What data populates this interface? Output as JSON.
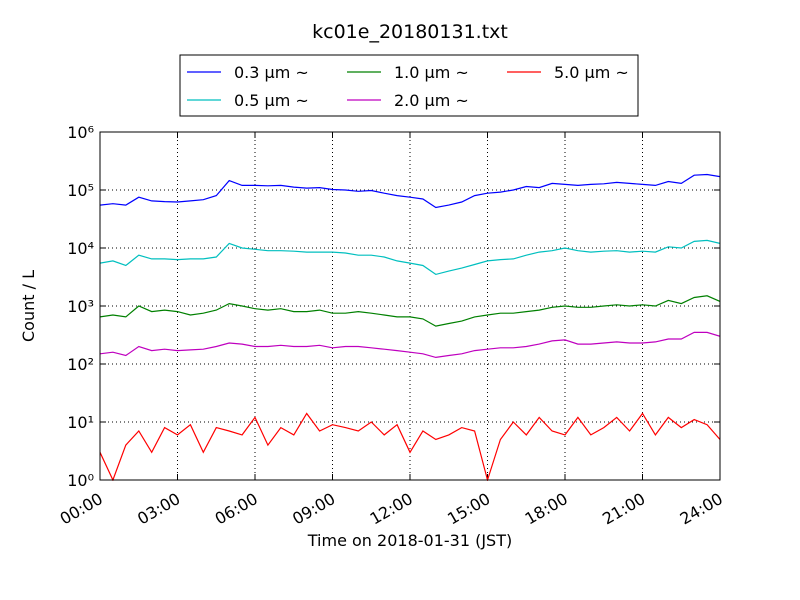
{
  "chart_data": {
    "type": "line",
    "title": "kc01e_20180131.txt",
    "xlabel": "Time on 2018-01-31 (JST)",
    "ylabel": "Count / L",
    "yscale": "log",
    "grid": true,
    "legend": "upper center",
    "x": [
      0,
      0.5,
      1,
      1.5,
      2,
      2.5,
      3,
      3.5,
      4,
      4.5,
      5,
      5.5,
      6,
      6.5,
      7,
      7.5,
      8,
      8.5,
      9,
      9.5,
      10,
      10.5,
      11,
      11.5,
      12,
      12.5,
      13,
      13.5,
      14,
      14.5,
      15,
      15.5,
      16,
      16.5,
      17,
      17.5,
      18,
      18.5,
      19,
      19.5,
      20,
      20.5,
      21,
      21.5,
      22,
      22.5,
      23,
      23.5,
      24
    ],
    "xlim": [
      0,
      24
    ],
    "xticks": [
      {
        "value": 0,
        "label": "00:00"
      },
      {
        "value": 3,
        "label": "03:00"
      },
      {
        "value": 6,
        "label": "06:00"
      },
      {
        "value": 9,
        "label": "09:00"
      },
      {
        "value": 12,
        "label": "12:00"
      },
      {
        "value": 15,
        "label": "15:00"
      },
      {
        "value": 18,
        "label": "18:00"
      },
      {
        "value": 21,
        "label": "21:00"
      },
      {
        "value": 24,
        "label": "24:00"
      }
    ],
    "ylim": [
      1,
      1000000
    ],
    "yticks": [
      {
        "value": 1,
        "label": "10⁰"
      },
      {
        "value": 10,
        "label": "10¹"
      },
      {
        "value": 100,
        "label": "10²"
      },
      {
        "value": 1000,
        "label": "10³"
      },
      {
        "value": 10000,
        "label": "10⁴"
      },
      {
        "value": 100000,
        "label": "10⁵"
      },
      {
        "value": 1000000,
        "label": "10⁶"
      }
    ],
    "series": [
      {
        "name": "0.3 μm ~",
        "color": "#0000ff",
        "values": [
          55000,
          58000,
          55000,
          75000,
          65000,
          63000,
          62000,
          65000,
          68000,
          80000,
          145000,
          120000,
          120000,
          118000,
          120000,
          112000,
          108000,
          110000,
          102000,
          100000,
          95000,
          98000,
          88000,
          80000,
          75000,
          70000,
          50000,
          55000,
          62000,
          80000,
          88000,
          92000,
          100000,
          115000,
          110000,
          130000,
          125000,
          120000,
          125000,
          128000,
          135000,
          130000,
          125000,
          120000,
          140000,
          130000,
          180000,
          185000,
          170000
        ]
      },
      {
        "name": "0.5 μm ~",
        "color": "#00bfbf",
        "values": [
          5500,
          6000,
          5000,
          7500,
          6500,
          6500,
          6300,
          6500,
          6500,
          7000,
          12000,
          10000,
          9500,
          9000,
          9000,
          8800,
          8500,
          8500,
          8500,
          8200,
          7500,
          7500,
          7000,
          6000,
          5500,
          5000,
          3500,
          4000,
          4500,
          5200,
          6000,
          6300,
          6500,
          7500,
          8500,
          9000,
          10000,
          9000,
          8500,
          8800,
          9000,
          8500,
          8800,
          8500,
          10500,
          10000,
          13000,
          13500,
          12000
        ]
      },
      {
        "name": "1.0 μm ~",
        "color": "#008000",
        "values": [
          650,
          700,
          650,
          1000,
          800,
          850,
          800,
          700,
          750,
          850,
          1100,
          1000,
          900,
          850,
          900,
          800,
          800,
          850,
          750,
          750,
          800,
          750,
          700,
          650,
          650,
          600,
          450,
          500,
          550,
          650,
          700,
          750,
          750,
          800,
          850,
          950,
          1000,
          950,
          950,
          1000,
          1050,
          1000,
          1050,
          1000,
          1250,
          1100,
          1400,
          1500,
          1200
        ]
      },
      {
        "name": "2.0 μm ~",
        "color": "#bf00bf",
        "values": [
          150,
          160,
          140,
          200,
          170,
          180,
          170,
          175,
          180,
          200,
          230,
          220,
          200,
          200,
          210,
          200,
          200,
          210,
          190,
          200,
          200,
          190,
          180,
          170,
          160,
          150,
          130,
          140,
          150,
          170,
          180,
          190,
          190,
          200,
          220,
          250,
          260,
          220,
          220,
          230,
          240,
          230,
          230,
          240,
          270,
          270,
          350,
          350,
          300
        ]
      },
      {
        "name": "5.0 μm ~",
        "color": "#ff0000",
        "values": [
          3,
          1,
          4,
          7,
          3,
          8,
          6,
          9,
          3,
          8,
          7,
          6,
          12,
          4,
          8,
          6,
          14,
          7,
          9,
          8,
          7,
          10,
          6,
          9,
          3,
          7,
          5,
          6,
          8,
          7,
          1,
          5,
          10,
          6,
          12,
          7,
          6,
          12,
          6,
          8,
          12,
          7,
          14,
          6,
          12,
          8,
          11,
          9,
          5
        ]
      }
    ]
  }
}
